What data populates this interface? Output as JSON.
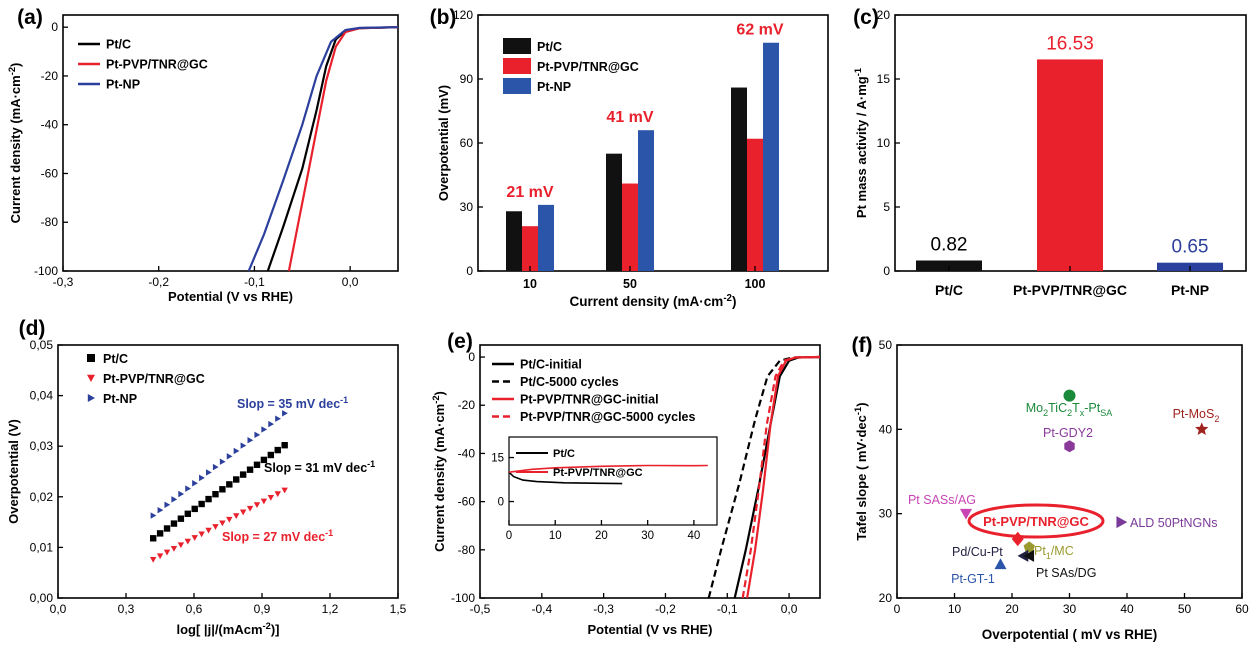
{
  "chart_data": [
    {
      "panel": "(a)",
      "type": "line",
      "xlabel": "Potential (V vs RHE)",
      "ylabel": "Current density (mA·cm⁻²)",
      "xlim": [
        -0.3,
        0.05
      ],
      "ylim": [
        -100,
        5
      ],
      "xticks": [
        "-0,3",
        "-0,2",
        "-0,1",
        "0,0"
      ],
      "yticks": [
        "-100",
        "-80",
        "-60",
        "-40",
        "-20",
        "0"
      ],
      "series": [
        {
          "name": "Pt/C",
          "color": "#000000",
          "points": [
            [
              -0.086,
              -100
            ],
            [
              -0.07,
              -82
            ],
            [
              -0.05,
              -58
            ],
            [
              -0.035,
              -34
            ],
            [
              -0.025,
              -16
            ],
            [
              -0.015,
              -5
            ],
            [
              -0.005,
              -1.5
            ],
            [
              0.01,
              -0.4
            ],
            [
              0.05,
              0
            ]
          ]
        },
        {
          "name": "Pt-PVP/TNR@GC",
          "color": "#e8212c",
          "points": [
            [
              -0.064,
              -100
            ],
            [
              -0.055,
              -82
            ],
            [
              -0.045,
              -62
            ],
            [
              -0.035,
              -42
            ],
            [
              -0.025,
              -22
            ],
            [
              -0.015,
              -8
            ],
            [
              -0.005,
              -2
            ],
            [
              0.01,
              -0.4
            ],
            [
              0.05,
              0
            ]
          ]
        },
        {
          "name": "Pt-NP",
          "color": "#2b3f9c",
          "points": [
            [
              -0.106,
              -100
            ],
            [
              -0.09,
              -85
            ],
            [
              -0.07,
              -63
            ],
            [
              -0.05,
              -40
            ],
            [
              -0.035,
              -20
            ],
            [
              -0.02,
              -6
            ],
            [
              -0.005,
              -1.2
            ],
            [
              0.01,
              -0.3
            ],
            [
              0.05,
              0
            ]
          ]
        }
      ]
    },
    {
      "panel": "(b)",
      "type": "bar",
      "xlabel": "Current density (mA·cm⁻²)",
      "ylabel": "Overpotential (mV)",
      "ylim": [
        0,
        120
      ],
      "yticks": [
        "0",
        "30",
        "60",
        "90",
        "120"
      ],
      "categories": [
        "10",
        "50",
        "100"
      ],
      "series": [
        {
          "name": "Pt/C",
          "color": "#111111",
          "values": [
            28,
            55,
            86
          ]
        },
        {
          "name": "Pt-PVP/TNR@GC",
          "color": "#e8212c",
          "values": [
            21,
            41,
            62
          ]
        },
        {
          "name": "Pt-NP",
          "color": "#2b55a8",
          "values": [
            31,
            66,
            107
          ]
        }
      ],
      "annotations": [
        "21 mV",
        "41 mV",
        "62 mV"
      ]
    },
    {
      "panel": "(c)",
      "type": "bar",
      "ylabel": "Pt mass activity / A·mg⁻¹",
      "ylim": [
        0,
        20
      ],
      "yticks": [
        "0",
        "5",
        "10",
        "15",
        "20"
      ],
      "categories": [
        "Pt/C",
        "Pt-PVP/TNR@GC",
        "Pt-NP"
      ],
      "values": [
        0.82,
        16.53,
        0.65
      ],
      "value_labels": [
        "0.82",
        "16.53",
        "0.65"
      ],
      "colors": [
        "#111111",
        "#e8212c",
        "#2b3f9c"
      ]
    },
    {
      "panel": "(d)",
      "type": "scatter",
      "xlabel": "log[ |j|/(mAcm⁻²)]",
      "ylabel": "Overpotential (V)",
      "xlim": [
        0,
        1.5
      ],
      "ylim": [
        0,
        0.05
      ],
      "xticks": [
        "0,0",
        "0,3",
        "0,6",
        "0,9",
        "1,2",
        "1,5"
      ],
      "yticks": [
        "0,00",
        "0,01",
        "0,02",
        "0,03",
        "0,04",
        "0,05"
      ],
      "series": [
        {
          "name": "Pt/C",
          "color": "#000000",
          "marker": "square",
          "x_range": [
            0.42,
            1.0
          ],
          "y_range": [
            0.0118,
            0.0302
          ]
        },
        {
          "name": "Pt-PVP/TNR@GC",
          "color": "#e8212c",
          "marker": "triangle-down",
          "x_range": [
            0.42,
            1.0
          ],
          "y_range": [
            0.0076,
            0.0213
          ]
        },
        {
          "name": "Pt-NP",
          "color": "#2b3f9c",
          "marker": "triangle-right",
          "x_range": [
            0.42,
            1.0
          ],
          "y_range": [
            0.0163,
            0.0365
          ]
        }
      ],
      "annotations": [
        {
          "text": "Slop = 35 mV dec⁻¹",
          "color": "#2b3f9c"
        },
        {
          "text": "Slop = 31 mV dec⁻¹",
          "color": "#000000"
        },
        {
          "text": "Slop = 27 mV dec⁻¹",
          "color": "#e8212c"
        }
      ]
    },
    {
      "panel": "(e)",
      "type": "line",
      "xlabel": "Potential (V vs RHE)",
      "ylabel": "Current density (mA·cm⁻²)",
      "xlim": [
        -0.5,
        0.05
      ],
      "ylim": [
        -100,
        5
      ],
      "xticks": [
        "-0,5",
        "-0,4",
        "-0,3",
        "-0,2",
        "-0,1",
        "0,0"
      ],
      "yticks": [
        "-100",
        "-80",
        "-60",
        "-40",
        "-20",
        "0"
      ],
      "series": [
        {
          "name": "Pt/C-initial",
          "color": "#000000",
          "dash": false,
          "points": [
            [
              -0.088,
              -100
            ],
            [
              -0.07,
              -80
            ],
            [
              -0.05,
              -55
            ],
            [
              -0.03,
              -28
            ],
            [
              -0.015,
              -8
            ],
            [
              0.0,
              -1.5
            ],
            [
              0.015,
              -0.2
            ],
            [
              0.05,
              0
            ]
          ]
        },
        {
          "name": "Pt/C-5000 cycles",
          "color": "#000000",
          "dash": true,
          "points": [
            [
              -0.13,
              -100
            ],
            [
              -0.11,
              -80
            ],
            [
              -0.08,
              -52
            ],
            [
              -0.055,
              -26
            ],
            [
              -0.035,
              -8
            ],
            [
              -0.015,
              -1.5
            ],
            [
              0.005,
              -0.2
            ],
            [
              0.05,
              0
            ]
          ]
        },
        {
          "name": "Pt-PVP/TNR@GC-initial",
          "color": "#e8212c",
          "dash": false,
          "points": [
            [
              -0.068,
              -100
            ],
            [
              -0.055,
              -80
            ],
            [
              -0.042,
              -55
            ],
            [
              -0.03,
              -28
            ],
            [
              -0.018,
              -8
            ],
            [
              -0.005,
              -1.5
            ],
            [
              0.01,
              -0.2
            ],
            [
              0.05,
              0
            ]
          ]
        },
        {
          "name": "Pt-PVP/TNR@GC-5000 cycles",
          "color": "#e8212c",
          "dash": true,
          "points": [
            [
              -0.075,
              -100
            ],
            [
              -0.062,
              -80
            ],
            [
              -0.049,
              -55
            ],
            [
              -0.036,
              -28
            ],
            [
              -0.022,
              -8
            ],
            [
              -0.008,
              -1.5
            ],
            [
              0.008,
              -0.2
            ],
            [
              0.05,
              0
            ]
          ]
        }
      ],
      "inset": {
        "xlim": [
          0,
          45
        ],
        "ylim": [
          -8,
          22
        ],
        "xticks": [
          "0",
          "10",
          "20",
          "30",
          "40"
        ],
        "yticks": [
          "0",
          "15"
        ],
        "series": [
          {
            "name": "Pt/C",
            "color": "#000000",
            "points": [
              [
                0,
                10
              ],
              [
                1,
                8.5
              ],
              [
                3,
                7.3
              ],
              [
                6,
                6.8
              ],
              [
                12,
                6.4
              ],
              [
                20,
                6.2
              ],
              [
                24.5,
                6.1
              ]
            ]
          },
          {
            "name": "Pt-PVP/TNR@GC",
            "color": "#e8212c",
            "points": [
              [
                0,
                10
              ],
              [
                5,
                11
              ],
              [
                10,
                11.5
              ],
              [
                20,
                12
              ],
              [
                30,
                12.3
              ],
              [
                40,
                12.2
              ],
              [
                43,
                12.3
              ]
            ]
          }
        ]
      }
    },
    {
      "panel": "(f)",
      "type": "scatter",
      "xlabel": "Overpotential ( mV vs RHE)",
      "ylabel": "Tafel slope ( mV·dec⁻¹)",
      "xlim": [
        0,
        60
      ],
      "ylim": [
        20,
        50
      ],
      "xticks": [
        "0",
        "10",
        "20",
        "30",
        "40",
        "50",
        "60"
      ],
      "yticks": [
        "20",
        "30",
        "40",
        "50"
      ],
      "points": [
        {
          "label": "Mo2TiC2Tx-PtSA",
          "x": 30,
          "y": 44,
          "color": "#1a8a3a",
          "marker": "circle"
        },
        {
          "label": "Pt-MoS2",
          "x": 53,
          "y": 40,
          "color": "#a0221e",
          "marker": "star"
        },
        {
          "label": "Pt-GDY2",
          "x": 30,
          "y": 38,
          "color": "#8a3a9a",
          "marker": "hexagon"
        },
        {
          "label": "Pt SASs/AG",
          "x": 12,
          "y": 30,
          "color": "#c844b4",
          "marker": "triangle-down"
        },
        {
          "label": "Pt-PVP/TNR@GC",
          "x": 21,
          "y": 27,
          "color": "#e8212c",
          "marker": "diamond"
        },
        {
          "label": "ALD 50PtNGNs",
          "x": 39,
          "y": 29,
          "color": "#7a3a9a",
          "marker": "triangle-right"
        },
        {
          "label": "Pt1/MC",
          "x": 23,
          "y": 26,
          "color": "#9a9a30",
          "marker": "pentagon"
        },
        {
          "label": "Pd/Cu-Pt",
          "x": 22,
          "y": 25,
          "color": "#222244",
          "marker": "triangle-left"
        },
        {
          "label": "Pt SAs/DG",
          "x": 23,
          "y": 25,
          "color": "#111111",
          "marker": "triangle-left"
        },
        {
          "label": "Pt-GT-1",
          "x": 18,
          "y": 24,
          "color": "#2b55a8",
          "marker": "triangle-up"
        }
      ]
    }
  ]
}
